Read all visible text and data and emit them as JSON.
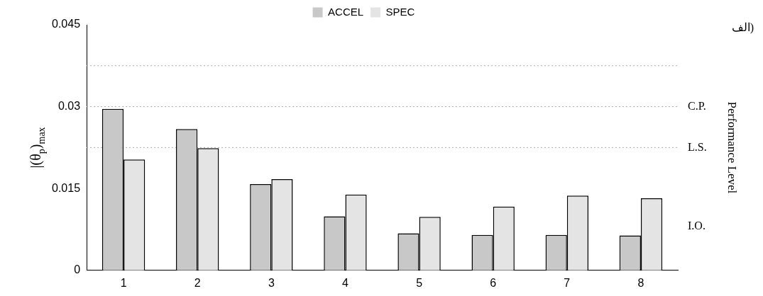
{
  "chart_data": {
    "type": "bar",
    "categories": [
      "1",
      "2",
      "3",
      "4",
      "5",
      "6",
      "7",
      "8"
    ],
    "series": [
      {
        "name": "ACCEL",
        "color": "#c8c8c8",
        "values": [
          0.0296,
          0.0259,
          0.0158,
          0.0099,
          0.0068,
          0.0065,
          0.0065,
          0.0064
        ]
      },
      {
        "name": "SPEC",
        "color": "#e4e4e4",
        "values": [
          0.0203,
          0.0224,
          0.0167,
          0.0139,
          0.0098,
          0.0117,
          0.0137,
          0.0132
        ]
      }
    ],
    "ylabel": "|(θ$_{p}$)$_{max}$",
    "y2label": "Performance Level",
    "ylim": [
      0,
      0.045
    ],
    "yticks": [
      0,
      0.015,
      0.03,
      0.045
    ],
    "ref_lines": [
      {
        "axis": "y",
        "value": 0.0375,
        "label": null,
        "color": "#aaaaaa",
        "line_style": "dotted"
      },
      {
        "axis": "y",
        "value": 0.03,
        "label": "C.P.",
        "color": "#aaaaaa",
        "line_style": "dotted"
      },
      {
        "axis": "y",
        "value": 0.0225,
        "label": "L.S.",
        "color": "#aaaaaa",
        "line_style": "dotted"
      }
    ],
    "annotations": [
      "I.O.",
      "الف)"
    ],
    "grid": false,
    "legend": "top"
  }
}
